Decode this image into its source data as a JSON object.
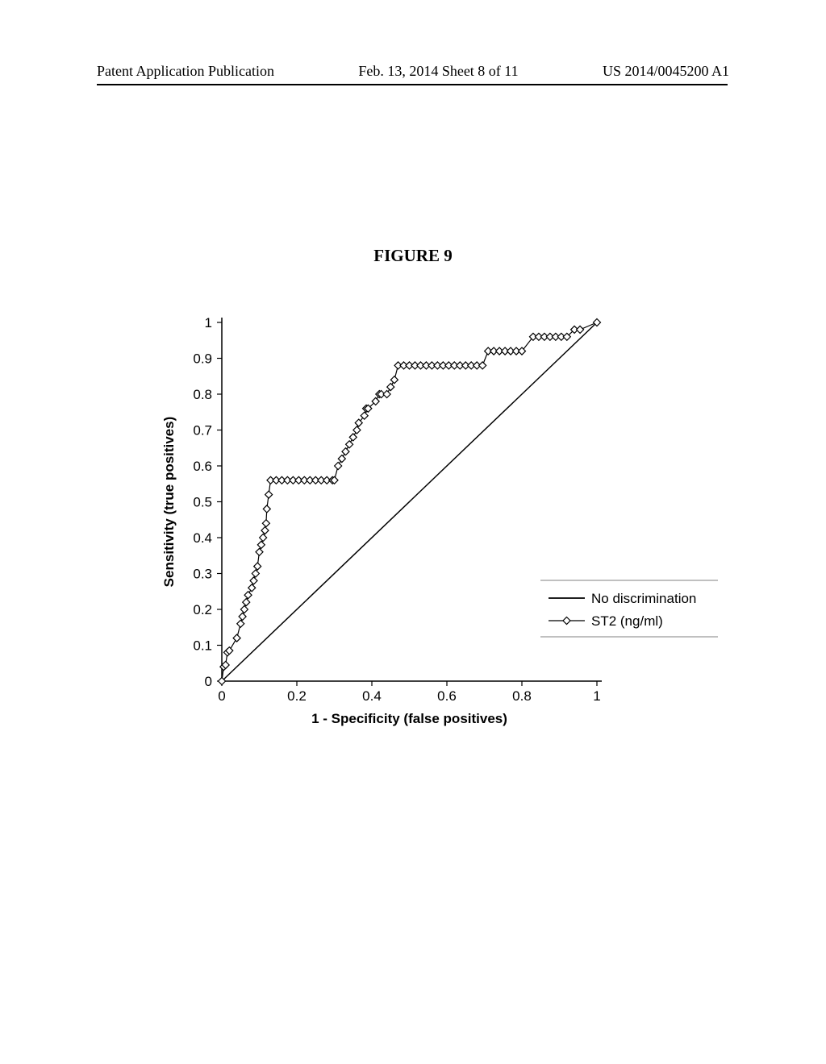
{
  "header": {
    "left": "Patent Application Publication",
    "center": "Feb. 13, 2014  Sheet 8 of 11",
    "right": "US 2014/0045200 A1"
  },
  "figure_title": "FIGURE 9",
  "chart": {
    "type": "roc-curve",
    "xlabel": "1 - Specificity (false positives)",
    "ylabel": "Sensitivity (true positives)",
    "xlim": [
      0,
      1
    ],
    "ylim": [
      0,
      1
    ],
    "xtick_step": 0.2,
    "ytick_step": 0.1,
    "xticks": [
      "0",
      "0.2",
      "0.4",
      "0.6",
      "0.8",
      "1"
    ],
    "yticks": [
      "0",
      "0.1",
      "0.2",
      "0.3",
      "0.4",
      "0.5",
      "0.6",
      "0.7",
      "0.8",
      "0.9",
      "1"
    ],
    "background_color": "#ffffff",
    "axis_color": "#000000",
    "tick_fontsize": 17,
    "label_fontsize": 17,
    "label_fontweight": "bold",
    "reference_line": {
      "label": "No discrimination",
      "color": "#000000",
      "line_width": 1.5,
      "points": [
        [
          0,
          0
        ],
        [
          1,
          1
        ]
      ]
    },
    "series": {
      "label": "ST2 (ng/ml)",
      "color": "#000000",
      "marker": "diamond",
      "marker_fill": "#ffffff",
      "marker_stroke": "#000000",
      "marker_size": 9,
      "line_width": 1.2,
      "points": [
        [
          0.0,
          0.0
        ],
        [
          0.005,
          0.04
        ],
        [
          0.01,
          0.045
        ],
        [
          0.015,
          0.08
        ],
        [
          0.02,
          0.085
        ],
        [
          0.04,
          0.12
        ],
        [
          0.05,
          0.16
        ],
        [
          0.055,
          0.18
        ],
        [
          0.06,
          0.2
        ],
        [
          0.065,
          0.22
        ],
        [
          0.07,
          0.24
        ],
        [
          0.08,
          0.26
        ],
        [
          0.085,
          0.28
        ],
        [
          0.09,
          0.3
        ],
        [
          0.095,
          0.32
        ],
        [
          0.1,
          0.36
        ],
        [
          0.105,
          0.38
        ],
        [
          0.11,
          0.4
        ],
        [
          0.115,
          0.42
        ],
        [
          0.118,
          0.44
        ],
        [
          0.12,
          0.48
        ],
        [
          0.125,
          0.52
        ],
        [
          0.13,
          0.56
        ],
        [
          0.145,
          0.56
        ],
        [
          0.16,
          0.56
        ],
        [
          0.175,
          0.56
        ],
        [
          0.19,
          0.56
        ],
        [
          0.205,
          0.56
        ],
        [
          0.22,
          0.56
        ],
        [
          0.235,
          0.56
        ],
        [
          0.25,
          0.56
        ],
        [
          0.265,
          0.56
        ],
        [
          0.28,
          0.56
        ],
        [
          0.295,
          0.56
        ],
        [
          0.3,
          0.56
        ],
        [
          0.31,
          0.6
        ],
        [
          0.32,
          0.62
        ],
        [
          0.33,
          0.64
        ],
        [
          0.34,
          0.66
        ],
        [
          0.35,
          0.68
        ],
        [
          0.36,
          0.7
        ],
        [
          0.365,
          0.72
        ],
        [
          0.38,
          0.74
        ],
        [
          0.385,
          0.76
        ],
        [
          0.39,
          0.76
        ],
        [
          0.41,
          0.78
        ],
        [
          0.42,
          0.8
        ],
        [
          0.425,
          0.8
        ],
        [
          0.44,
          0.8
        ],
        [
          0.45,
          0.82
        ],
        [
          0.46,
          0.84
        ],
        [
          0.47,
          0.88
        ],
        [
          0.485,
          0.88
        ],
        [
          0.5,
          0.88
        ],
        [
          0.515,
          0.88
        ],
        [
          0.53,
          0.88
        ],
        [
          0.545,
          0.88
        ],
        [
          0.56,
          0.88
        ],
        [
          0.575,
          0.88
        ],
        [
          0.59,
          0.88
        ],
        [
          0.605,
          0.88
        ],
        [
          0.62,
          0.88
        ],
        [
          0.635,
          0.88
        ],
        [
          0.65,
          0.88
        ],
        [
          0.665,
          0.88
        ],
        [
          0.68,
          0.88
        ],
        [
          0.695,
          0.88
        ],
        [
          0.71,
          0.92
        ],
        [
          0.725,
          0.92
        ],
        [
          0.74,
          0.92
        ],
        [
          0.755,
          0.92
        ],
        [
          0.77,
          0.92
        ],
        [
          0.785,
          0.92
        ],
        [
          0.8,
          0.92
        ],
        [
          0.83,
          0.96
        ],
        [
          0.845,
          0.96
        ],
        [
          0.86,
          0.96
        ],
        [
          0.875,
          0.96
        ],
        [
          0.89,
          0.96
        ],
        [
          0.905,
          0.96
        ],
        [
          0.92,
          0.96
        ],
        [
          0.94,
          0.98
        ],
        [
          0.955,
          0.98
        ],
        [
          1.0,
          1.0
        ]
      ]
    },
    "legend": {
      "position": "bottom-right",
      "border_color": "#808080",
      "items": [
        "No discrimination",
        "ST2 (ng/ml)"
      ]
    }
  }
}
